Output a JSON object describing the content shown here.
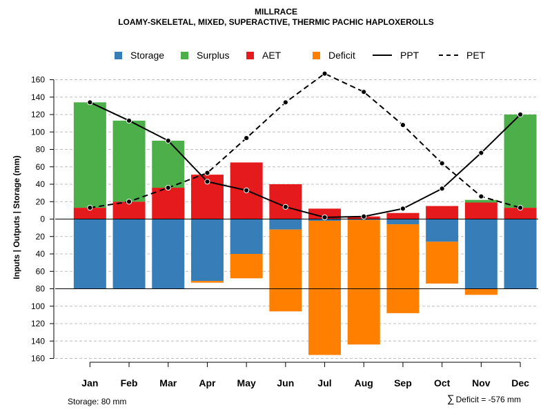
{
  "title": "MILLRACE",
  "subtitle": "LOAMY-SKELETAL, MIXED, SUPERACTIVE, THERMIC PACHIC HAPLOXEROLLS",
  "legend": [
    {
      "label": "Storage",
      "kind": "box",
      "color": "#377EB8"
    },
    {
      "label": "Surplus",
      "kind": "box",
      "color": "#4DAF4A"
    },
    {
      "label": "AET",
      "kind": "box",
      "color": "#E41A1C"
    },
    {
      "label": "Deficit",
      "kind": "box",
      "color": "#FF7F00"
    },
    {
      "label": "PPT",
      "kind": "solid"
    },
    {
      "label": "PET",
      "kind": "dashed"
    }
  ],
  "ylabel": "Inputs | Outputs | Storage    (mm)",
  "footer": {
    "storage_note": "Storage: 80 mm",
    "sigma": "∑",
    "deficit_note": "Deficit = -576 mm"
  },
  "chart_data": {
    "type": "bar",
    "categories": [
      "Jan",
      "Feb",
      "Mar",
      "Apr",
      "May",
      "Jun",
      "Jul",
      "Aug",
      "Sep",
      "Oct",
      "Nov",
      "Dec"
    ],
    "y_ticks": [
      160,
      140,
      120,
      100,
      80,
      60,
      40,
      20,
      0,
      20,
      40,
      60,
      80,
      100,
      120,
      140,
      160
    ],
    "ylim": [
      -160,
      160
    ],
    "storage_capacity": 80,
    "aet": [
      13,
      20,
      36,
      51,
      65,
      40,
      12,
      3,
      7,
      15,
      19,
      13
    ],
    "surplus": [
      121,
      93,
      54,
      0,
      0,
      0,
      0,
      0,
      0,
      0,
      3,
      107
    ],
    "storage": [
      80,
      80,
      80,
      71,
      40,
      12,
      2,
      1,
      6,
      26,
      80,
      80
    ],
    "deficit": [
      0,
      0,
      0,
      2,
      28,
      94,
      154,
      143,
      102,
      48,
      7,
      0
    ],
    "ppt": [
      134,
      113,
      90,
      43,
      33,
      14,
      2,
      3,
      12,
      35,
      76,
      120
    ],
    "pet": [
      13,
      20,
      36,
      53,
      93,
      134,
      167,
      146,
      108,
      64,
      26,
      13
    ],
    "series_colors": {
      "storage": "#377EB8",
      "surplus": "#4DAF4A",
      "aet": "#E41A1C",
      "deficit": "#FF7F00",
      "lines": "#000000",
      "grid": "#BEBEBE"
    }
  }
}
